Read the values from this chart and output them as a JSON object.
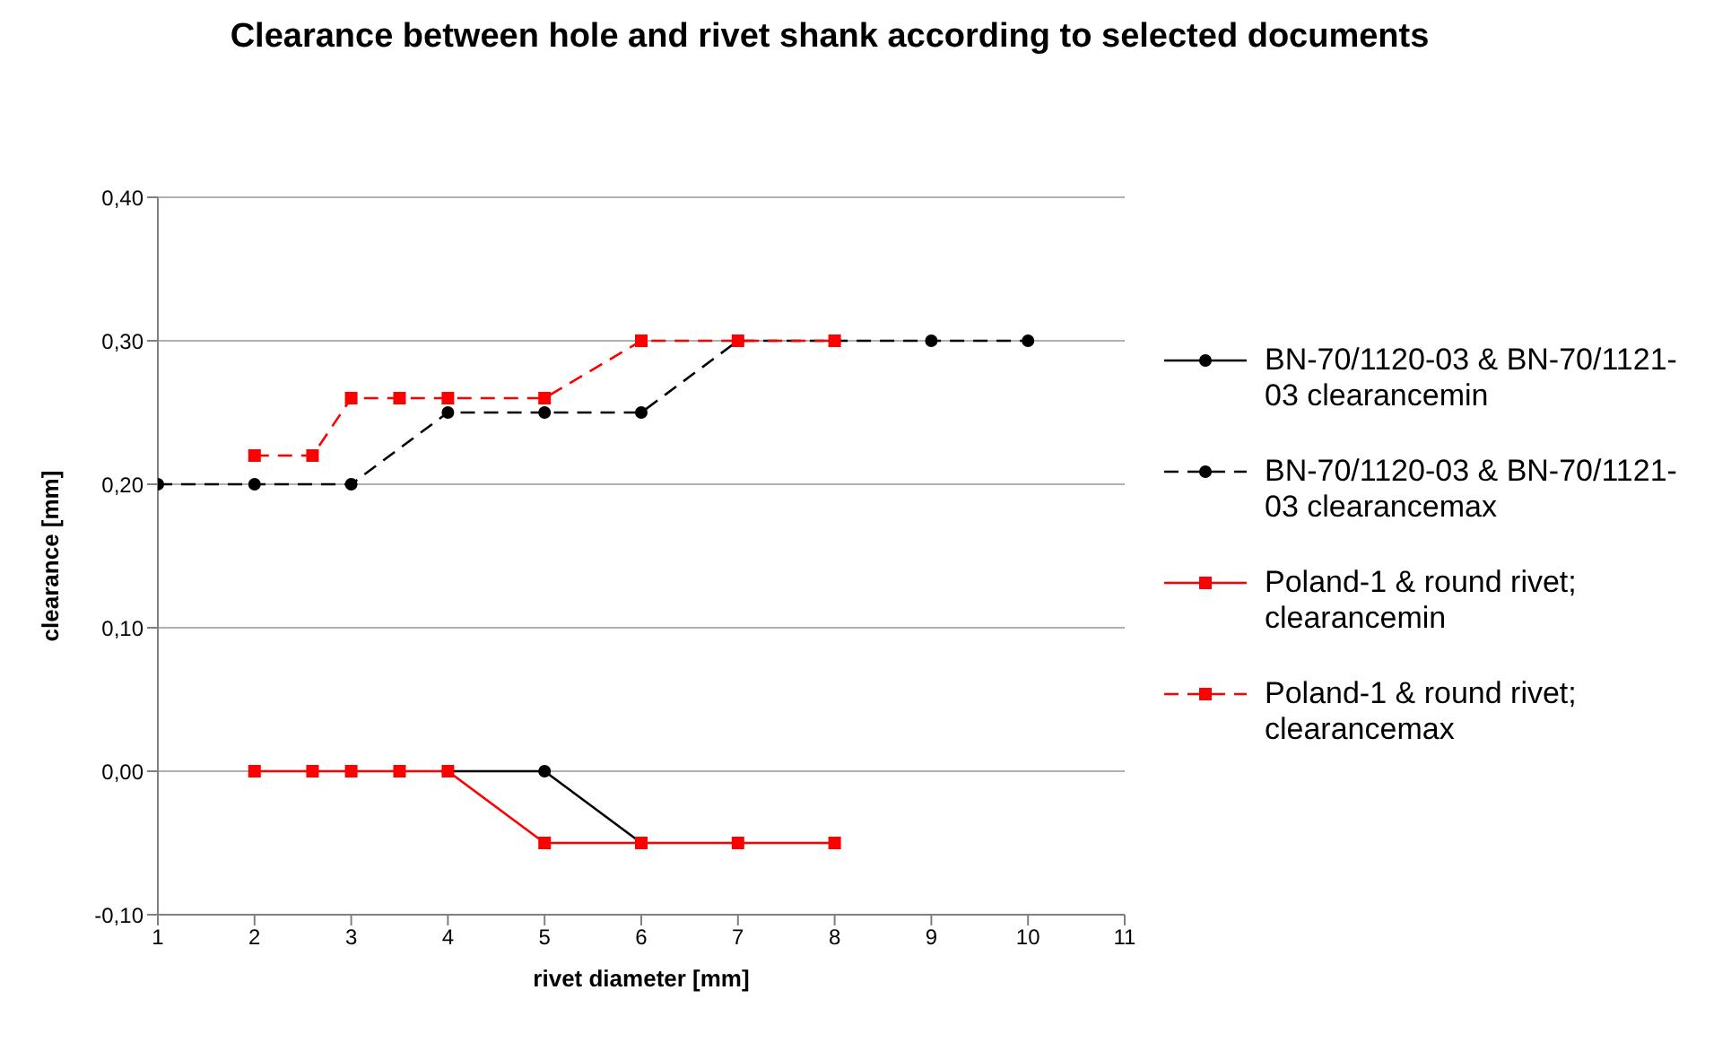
{
  "chart_data": {
    "type": "line",
    "title": "Clearance between hole and rivet shank according to selected documents",
    "xlabel": "rivet diameter [mm]",
    "ylabel": "clearance [mm]",
    "xlim": [
      1,
      11
    ],
    "xticks": [
      1,
      2,
      3,
      4,
      5,
      6,
      7,
      8,
      9,
      10,
      11
    ],
    "ylim": [
      -0.1,
      0.4
    ],
    "yticks": [
      {
        "value": -0.1,
        "label": "-0,10"
      },
      {
        "value": 0,
        "label": "0,00"
      },
      {
        "value": 0.1,
        "label": "0,10"
      },
      {
        "value": 0.2,
        "label": "0,20"
      },
      {
        "value": 0.3,
        "label": "0,30"
      },
      {
        "value": 0.4,
        "label": "0,40"
      }
    ],
    "grid": "y",
    "legend": "right",
    "series": [
      {
        "name": "BN-70/1120-03 & BN-70/1121-03 clearancemin",
        "color": "#000000",
        "marker": "circle",
        "line_style": "solid",
        "x": [
          4,
          5,
          6
        ],
        "values": [
          0,
          0,
          -0.05
        ]
      },
      {
        "name": "BN-70/1120-03 & BN-70/1121-03 clearancemax",
        "color": "#000000",
        "marker": "circle",
        "line_style": "dashed",
        "x": [
          1,
          2,
          3,
          4,
          5,
          6,
          7,
          8,
          9,
          10
        ],
        "values": [
          0.2,
          0.2,
          0.2,
          0.25,
          0.25,
          0.25,
          0.3,
          0.3,
          0.3,
          0.3
        ]
      },
      {
        "name": "Poland-1 & round rivet; clearancemin",
        "color": "#ff0000",
        "marker": "square",
        "line_style": "solid",
        "x": [
          2,
          2.6,
          3,
          3.5,
          4,
          5,
          6,
          7,
          8
        ],
        "values": [
          0,
          0,
          0,
          0,
          0,
          -0.05,
          -0.05,
          -0.05,
          -0.05
        ]
      },
      {
        "name": "Poland-1 & round rivet; clearancemax",
        "color": "#ff0000",
        "marker": "square",
        "line_style": "dashed",
        "x": [
          2,
          2.6,
          3,
          3.5,
          4,
          5,
          6,
          7,
          8
        ],
        "values": [
          0.22,
          0.22,
          0.26,
          0.26,
          0.26,
          0.26,
          0.3,
          0.3,
          0.3
        ]
      }
    ]
  }
}
